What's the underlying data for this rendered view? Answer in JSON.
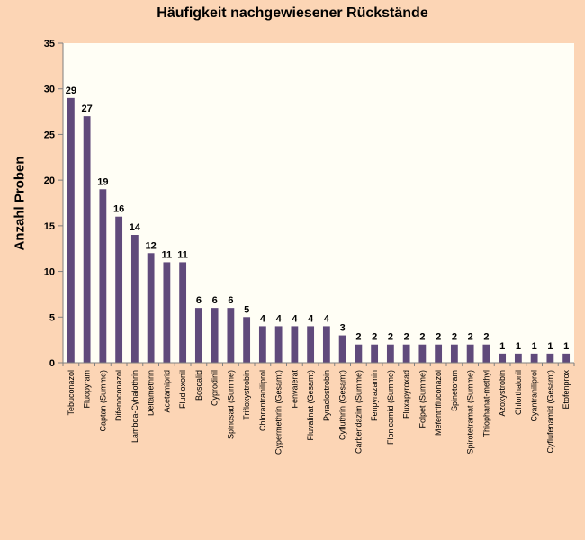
{
  "chart_data": {
    "type": "bar",
    "title": "Häufigkeit nachgewiesener Rückstände",
    "xlabel": "",
    "ylabel": "Anzahl Proben",
    "ylim": [
      0,
      35
    ],
    "yticks": [
      0,
      5,
      10,
      15,
      20,
      25,
      30,
      35
    ],
    "grid": false,
    "legend": "none",
    "bar_color": "#604a7b",
    "plot_background": "#fffef5",
    "page_background": "#fcd5b5",
    "categories": [
      "Tebuconazol",
      "Fluopyram",
      "Captan (Summe)",
      "Difenoconazol",
      "Lambda-Cyhalothrin",
      "Deltamethrin",
      "Acetamiprid",
      "Fludioxonil",
      "Boscalid",
      "Cyprodinil",
      "Spinosad (Summe)",
      "Trifloxystrobin",
      "Chlorantraniliprol",
      "Cypermethrin (Gesamt)",
      "Fenvalerat",
      "Fluvalinat (Gesamt)",
      "Pyraclostrobin",
      "Cyfluthrin (Gesamt)",
      "Carbendazim (Summe)",
      "Fenpyrazamin",
      "Flonicamid (Summe)",
      "Fluxapyroxad",
      "Folpet (Summe)",
      "Mefentrifluconazol",
      "Spinetoram",
      "Spirotetramat (Summe)",
      "Thiophanat-methyl",
      "Azoxystrobin",
      "Chlorthalonil",
      "Cyantraniliprol",
      "Cyflufenamid (Gesamt)",
      "Etofenprox"
    ],
    "values": [
      29,
      27,
      19,
      16,
      14,
      12,
      11,
      11,
      6,
      6,
      6,
      5,
      4,
      4,
      4,
      4,
      4,
      3,
      2,
      2,
      2,
      2,
      2,
      2,
      2,
      2,
      2,
      1,
      1,
      1,
      1,
      1
    ]
  }
}
